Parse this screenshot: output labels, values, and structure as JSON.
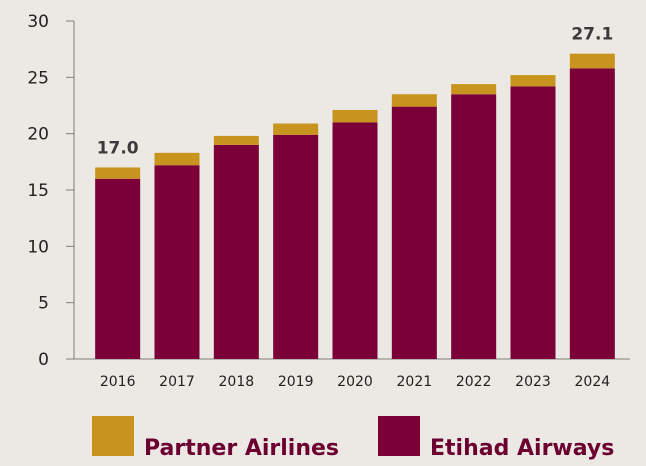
{
  "chart_data": {
    "type": "bar",
    "stacked": true,
    "categories": [
      "2016",
      "2017",
      "2018",
      "2019",
      "2020",
      "2021",
      "2022",
      "2023",
      "2024"
    ],
    "series": [
      {
        "name": "Etihad Airways",
        "color": "#7b0038",
        "values": [
          16.0,
          17.2,
          19.0,
          19.9,
          21.0,
          22.4,
          23.5,
          24.2,
          25.8
        ]
      },
      {
        "name": "Partner Airlines",
        "color": "#c8941e",
        "values": [
          1.0,
          1.1,
          0.8,
          1.0,
          1.1,
          1.1,
          0.9,
          1.0,
          1.3
        ]
      }
    ],
    "ylim": [
      0,
      30
    ],
    "yticks": [
      0,
      5,
      10,
      15,
      20,
      25,
      30
    ],
    "grid": false,
    "annotations": [
      {
        "category": "2016",
        "text": "17.0"
      },
      {
        "category": "2024",
        "text": "27.1"
      }
    ],
    "legend": {
      "placement": "bottom",
      "items": [
        {
          "label": "Partner Airlines",
          "color": "#c8941e"
        },
        {
          "label": "Etihad Airways",
          "color": "#7b0038"
        }
      ]
    }
  }
}
